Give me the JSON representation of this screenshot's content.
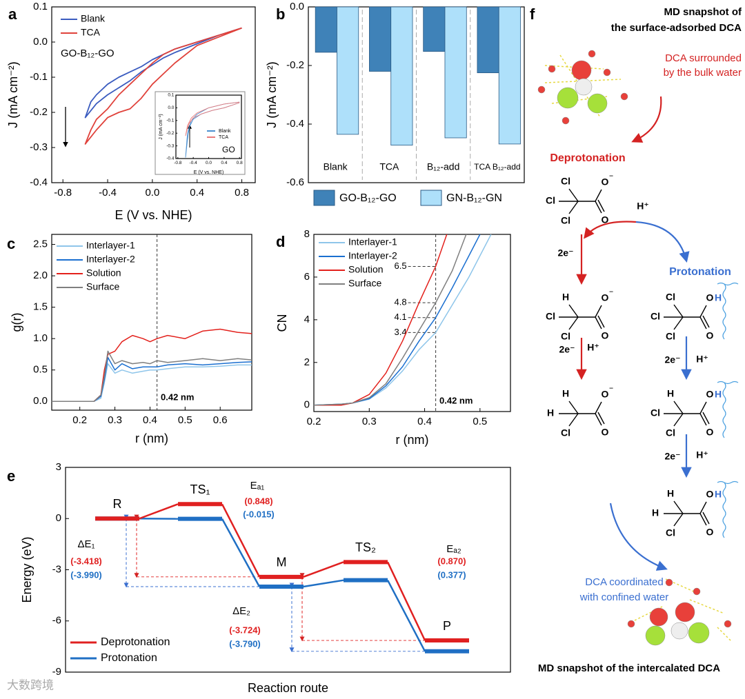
{
  "chart_data": [
    {
      "panel": "a",
      "type": "line",
      "xlabel": "E (V vs. NHE)",
      "ylabel": "J (mA cm⁻²)",
      "xlim": [
        -0.9,
        0.92
      ],
      "ylim": [
        -0.4,
        0.1
      ],
      "xticks": [
        -0.8,
        -0.4,
        {
          "value": 0,
          "label": "0.0"
        },
        0.4,
        0.8
      ],
      "yticks": [
        -0.4,
        -0.3,
        -0.2,
        -0.1,
        {
          "value": 0,
          "label": "0.0"
        },
        0.1
      ],
      "annotations": [
        "GO-B₁₂-GO"
      ],
      "series": [
        {
          "name": "Blank",
          "color": "#3a5bbf",
          "x": [
            0.8,
            0.6,
            0.4,
            0.2,
            0.1,
            0,
            -0.1,
            -0.2,
            -0.3,
            -0.4,
            -0.5,
            -0.6,
            -0.55,
            -0.5,
            -0.4,
            -0.3,
            -0.2,
            -0.1,
            0,
            0.1,
            0.2,
            0.4,
            0.6,
            0.8
          ],
          "values": [
            0.04,
            0.02,
            -0.005,
            -0.03,
            -0.045,
            -0.065,
            -0.085,
            -0.11,
            -0.13,
            -0.15,
            -0.175,
            -0.215,
            -0.17,
            -0.15,
            -0.12,
            -0.1,
            -0.085,
            -0.07,
            -0.05,
            -0.035,
            -0.02,
            0.0,
            0.02,
            0.04
          ]
        },
        {
          "name": "TCA",
          "color": "#e0413a",
          "x": [
            0.8,
            0.6,
            0.4,
            0.2,
            0.1,
            0,
            -0.1,
            -0.2,
            -0.3,
            -0.4,
            -0.5,
            -0.6,
            -0.55,
            -0.5,
            -0.4,
            -0.3,
            -0.2,
            -0.1,
            0,
            0.1,
            0.2,
            0.4,
            0.6,
            0.8
          ],
          "values": [
            0.04,
            0.015,
            -0.01,
            -0.06,
            -0.09,
            -0.12,
            -0.16,
            -0.19,
            -0.2,
            -0.215,
            -0.25,
            -0.29,
            -0.25,
            -0.22,
            -0.19,
            -0.15,
            -0.12,
            -0.09,
            -0.06,
            -0.035,
            -0.02,
            0.0,
            0.02,
            0.04
          ]
        }
      ]
    },
    {
      "type": "line",
      "xlabel": "E (V vs. NHE)",
      "ylabel": "J (mA cm⁻²)",
      "xlim": [
        -0.85,
        0.85
      ],
      "ylim": [
        -0.4,
        0.1
      ],
      "xticks": [
        -0.8,
        -0.4,
        {
          "value": 0,
          "label": "0.0"
        },
        0.4,
        0.8
      ],
      "yticks": [
        -0.4,
        -0.3,
        -0.2,
        -0.1,
        {
          "value": 0,
          "label": "0.0"
        },
        0.1
      ],
      "annotations": [
        "GO"
      ],
      "series": [
        {
          "name": "Blank",
          "color": "#4a8fd0",
          "x": [
            0.8,
            0.4,
            0.1,
            -0.2,
            -0.4,
            -0.5,
            -0.55,
            -0.6,
            -0.55,
            -0.45,
            -0.3,
            0,
            0.4,
            0.8
          ],
          "values": [
            0.04,
            0.0,
            -0.02,
            -0.05,
            -0.09,
            -0.15,
            -0.25,
            -0.39,
            -0.2,
            -0.1,
            -0.05,
            0.0,
            0.03,
            0.045
          ]
        },
        {
          "name": "TCA",
          "color": "#e87a7a",
          "x": [
            0.8,
            0.4,
            0.1,
            -0.2,
            -0.4,
            -0.5,
            -0.55,
            -0.6,
            -0.55,
            -0.45,
            -0.3,
            0,
            0.4,
            0.8
          ],
          "values": [
            0.04,
            0.0,
            -0.02,
            -0.05,
            -0.08,
            -0.12,
            -0.16,
            -0.22,
            -0.14,
            -0.08,
            -0.04,
            0.0,
            0.03,
            0.045
          ]
        }
      ]
    },
    {
      "panel": "b",
      "type": "bar",
      "ylabel": "J (mA cm⁻²)",
      "categories": [
        "Blank",
        "TCA",
        "B₁₂-add",
        "TCA B₁₂-add"
      ],
      "ylim": [
        -0.6,
        0
      ],
      "yticks": [
        -0.6,
        -0.4,
        -0.2,
        {
          "value": 0,
          "label": "0.0"
        }
      ],
      "series": [
        {
          "name": "GO-B₁₂-GO",
          "color": "#3f82b8",
          "values": [
            -0.155,
            -0.22,
            -0.152,
            -0.225
          ]
        },
        {
          "name": "GN-B₁₂-GN",
          "color": "#aee0fa",
          "values": [
            -0.435,
            -0.472,
            -0.447,
            -0.468
          ]
        }
      ]
    },
    {
      "panel": "c",
      "type": "line",
      "xlabel": "r (nm)",
      "ylabel": "g(r)",
      "xlim": [
        0.12,
        0.69
      ],
      "ylim": [
        -0.14,
        2.66
      ],
      "xticks": [
        0.2,
        0.3,
        0.4,
        0.5,
        0.6
      ],
      "yticks": [
        {
          "value": 0,
          "label": "0.0"
        },
        0.5,
        {
          "value": 1,
          "label": "1.0"
        },
        1.5,
        {
          "value": 2,
          "label": "2.0"
        },
        2.5
      ],
      "vline": 0.42,
      "annotations": [
        "0.42 nm"
      ],
      "series": [
        {
          "name": "Interlayer-1",
          "color": "#8ec5ea",
          "x": [
            0.12,
            0.2,
            0.24,
            0.26,
            0.27,
            0.28,
            0.3,
            0.32,
            0.35,
            0.38,
            0.4,
            0.42,
            0.45,
            0.5,
            0.55,
            0.6,
            0.65,
            0.69
          ],
          "values": [
            0,
            0,
            0,
            0.05,
            0.3,
            0.6,
            0.45,
            0.5,
            0.45,
            0.48,
            0.5,
            0.5,
            0.52,
            0.55,
            0.55,
            0.56,
            0.58,
            0.58
          ]
        },
        {
          "name": "Interlayer-2",
          "color": "#1a6fd0",
          "x": [
            0.12,
            0.2,
            0.24,
            0.26,
            0.27,
            0.28,
            0.3,
            0.32,
            0.35,
            0.38,
            0.4,
            0.42,
            0.45,
            0.5,
            0.55,
            0.6,
            0.65,
            0.69
          ],
          "values": [
            0,
            0,
            0,
            0.08,
            0.35,
            0.7,
            0.5,
            0.6,
            0.52,
            0.55,
            0.55,
            0.55,
            0.58,
            0.6,
            0.58,
            0.6,
            0.62,
            0.63
          ]
        },
        {
          "name": "Solution",
          "color": "#e3201b",
          "x": [
            0.12,
            0.2,
            0.24,
            0.26,
            0.27,
            0.28,
            0.3,
            0.32,
            0.35,
            0.38,
            0.4,
            0.42,
            0.45,
            0.5,
            0.55,
            0.6,
            0.65,
            0.69
          ],
          "values": [
            0,
            0,
            0,
            0.1,
            0.5,
            0.75,
            0.8,
            0.95,
            1.05,
            1.0,
            0.95,
            1.0,
            1.05,
            1.0,
            1.12,
            1.15,
            1.1,
            1.08
          ]
        },
        {
          "name": "Surface",
          "color": "#7f7f7f",
          "x": [
            0.12,
            0.2,
            0.24,
            0.26,
            0.27,
            0.28,
            0.3,
            0.32,
            0.35,
            0.38,
            0.4,
            0.42,
            0.45,
            0.5,
            0.55,
            0.6,
            0.65,
            0.69
          ],
          "values": [
            0,
            0,
            0,
            0.1,
            0.4,
            0.8,
            0.6,
            0.65,
            0.6,
            0.62,
            0.6,
            0.65,
            0.62,
            0.65,
            0.68,
            0.65,
            0.68,
            0.66
          ]
        }
      ]
    },
    {
      "panel": "d",
      "type": "line",
      "xlabel": "r (nm)",
      "ylabel": "CN",
      "xlim": [
        0.2,
        0.555
      ],
      "ylim": [
        -0.3,
        8
      ],
      "xticks": [
        0.2,
        0.3,
        0.4,
        0.5
      ],
      "yticks": [
        0,
        2,
        4,
        6,
        8
      ],
      "vline": 0.42,
      "hlines": [
        6.5,
        4.8,
        4.1,
        3.4
      ],
      "annotations": [
        "0.42 nm"
      ],
      "series": [
        {
          "name": "Interlayer-1",
          "color": "#8ec5ea",
          "x": [
            0.2,
            0.25,
            0.27,
            0.3,
            0.33,
            0.36,
            0.39,
            0.42,
            0.45,
            0.48,
            0.5,
            0.52
          ],
          "values": [
            0,
            0.05,
            0.1,
            0.28,
            0.8,
            1.6,
            2.6,
            3.4,
            4.7,
            6.0,
            7.0,
            8.0
          ]
        },
        {
          "name": "Interlayer-2",
          "color": "#1a6fd0",
          "x": [
            0.2,
            0.25,
            0.27,
            0.3,
            0.33,
            0.36,
            0.39,
            0.42,
            0.45,
            0.48,
            0.5
          ],
          "values": [
            0,
            0.05,
            0.1,
            0.3,
            0.9,
            1.8,
            3.0,
            4.1,
            5.5,
            7.0,
            8.0
          ]
        },
        {
          "name": "Solution",
          "color": "#e3201b",
          "x": [
            0.2,
            0.25,
            0.27,
            0.3,
            0.33,
            0.36,
            0.39,
            0.42,
            0.44
          ],
          "values": [
            0,
            0,
            0.1,
            0.5,
            1.5,
            3.0,
            4.8,
            6.5,
            8.0
          ]
        },
        {
          "name": "Surface",
          "color": "#7f7f7f",
          "x": [
            0.2,
            0.25,
            0.27,
            0.3,
            0.33,
            0.36,
            0.39,
            0.42,
            0.45,
            0.475
          ],
          "values": [
            0,
            0.05,
            0.1,
            0.35,
            1.0,
            2.2,
            3.5,
            4.8,
            6.3,
            8.0
          ]
        }
      ]
    },
    {
      "panel": "e",
      "type": "energy",
      "xlabel": "Reaction route",
      "ylabel": "Energy (eV)",
      "categories": [
        "R",
        "TS₁",
        "M",
        "TS₂",
        "P"
      ],
      "ylim": [
        -9,
        3
      ],
      "yticks": [
        -9,
        -6,
        -3,
        0,
        3
      ],
      "series": [
        {
          "name": "Deprotonation",
          "color": "#e02020",
          "values": [
            0,
            0.848,
            -3.418,
            -2.548,
            -7.142
          ]
        },
        {
          "name": "Protonation",
          "color": "#1f6fc4",
          "values": [
            0,
            -0.015,
            -3.99,
            -3.613,
            -7.78
          ]
        }
      ],
      "annotations": [
        {
          "text": "Eₐ₁",
          "color": "#000000"
        },
        {
          "text": "(0.848)",
          "color": "#e02020"
        },
        {
          "text": "(-0.015)",
          "color": "#1f6fc4"
        },
        {
          "text": "ΔE₁",
          "color": "#000000"
        },
        {
          "text": "(-3.418)",
          "color": "#e02020"
        },
        {
          "text": "(-3.990)",
          "color": "#1f6fc4"
        },
        {
          "text": "ΔE₂",
          "color": "#000000"
        },
        {
          "text": "(-3.724)",
          "color": "#e02020"
        },
        {
          "text": "(-3.790)",
          "color": "#1f6fc4"
        },
        {
          "text": "Eₐ₂",
          "color": "#000000"
        },
        {
          "text": "(0.870)",
          "color": "#e02020"
        },
        {
          "text": "(0.377)",
          "color": "#1f6fc4"
        }
      ]
    }
  ],
  "diagram": {
    "panel": "f",
    "top_caption": [
      "MD snapshot of",
      "the surface-adsorbed DCA"
    ],
    "note_bulk": [
      "DCA surrounded",
      "by the bulk water"
    ],
    "deprotonation": "Deprotonation",
    "protonation": "Protonation",
    "h_plus": "H⁺",
    "two_e": "2e⁻",
    "note_confined": [
      "DCA coordinated",
      "with confined water"
    ],
    "bottom_caption": "MD snapshot of the intercalated DCA",
    "molecules": [
      {
        "top": "Cl",
        "left": "Cl",
        "bottom": "Cl",
        "o": "O",
        "suffix": "⁻",
        "o2": "O"
      },
      {
        "top": "H",
        "left": "Cl",
        "bottom": "Cl",
        "o": "O",
        "suffix": "⁻",
        "o2": "O"
      },
      {
        "top": "H",
        "left": "H",
        "bottom": "Cl",
        "o": "O",
        "suffix": "⁻",
        "o2": "O"
      },
      {
        "top": "Cl",
        "left": "Cl",
        "bottom": "Cl",
        "o": "O",
        "suffix": "H",
        "o2": "O"
      },
      {
        "top": "H",
        "left": "Cl",
        "bottom": "Cl",
        "o": "O",
        "suffix": "H",
        "o2": "O"
      },
      {
        "top": "H",
        "left": "H",
        "bottom": "Cl",
        "o": "O",
        "suffix": "H",
        "o2": "O"
      }
    ]
  },
  "watermark": "大数跨境"
}
